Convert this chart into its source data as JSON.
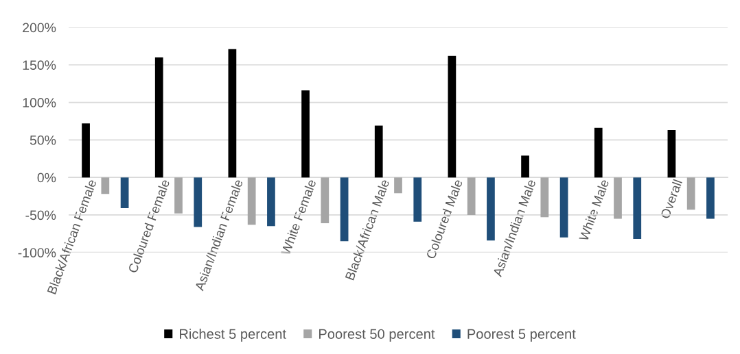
{
  "chart_data": {
    "type": "bar",
    "categories": [
      "Black/African Female",
      "Coloured Female",
      "Asian/Indian Female",
      "White Female",
      "Black/African Male",
      "Coloured Male",
      "Asian/Indian Male",
      "White Male",
      "Overall"
    ],
    "series": [
      {
        "name": "Richest 5 percent",
        "color": "#000000",
        "values": [
          72,
          160,
          171,
          116,
          69,
          162,
          29,
          66,
          63
        ]
      },
      {
        "name": "Poorest 50 percent",
        "color": "#a5a5a5",
        "values": [
          -22,
          -48,
          -63,
          -61,
          -21,
          -50,
          -53,
          -55,
          -43
        ]
      },
      {
        "name": "Poorest 5 percent",
        "color": "#1f4e79",
        "values": [
          -41,
          -66,
          -65,
          -85,
          -59,
          -84,
          -80,
          -82,
          -55
        ]
      }
    ],
    "ylim": [
      -100,
      200
    ],
    "yticks": [
      {
        "value": -100,
        "label": "-100%"
      },
      {
        "value": -50,
        "label": "-50%"
      },
      {
        "value": 0,
        "label": "0%"
      },
      {
        "value": 50,
        "label": "50%"
      },
      {
        "value": 100,
        "label": "100%"
      },
      {
        "value": 150,
        "label": "150%"
      },
      {
        "value": 200,
        "label": "200%"
      }
    ],
    "grid": "y",
    "legend": "bottom"
  }
}
